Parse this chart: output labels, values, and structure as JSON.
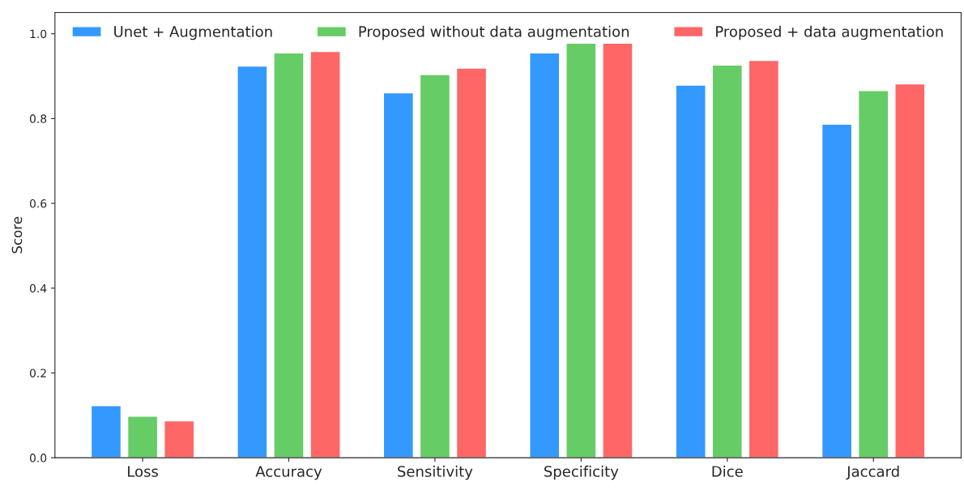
{
  "chart_data": {
    "type": "bar",
    "ylabel": "Score",
    "categories": [
      "Loss",
      "Accuracy",
      "Sensitivity",
      "Specificity",
      "Dice",
      "Jaccard"
    ],
    "series": [
      {
        "name": "Unet + Augmentation",
        "color": "#3399ff",
        "values": [
          0.123,
          0.924,
          0.861,
          0.955,
          0.879,
          0.787
        ]
      },
      {
        "name": "Proposed without data augmentation",
        "color": "#66cc66",
        "values": [
          0.098,
          0.955,
          0.904,
          0.978,
          0.926,
          0.866
        ]
      },
      {
        "name": "Proposed + data augmentation",
        "color": "#ff6666",
        "values": [
          0.087,
          0.958,
          0.919,
          0.978,
          0.937,
          0.882
        ]
      }
    ],
    "ylim": [
      0,
      1.05
    ],
    "yticks": [
      {
        "value": 0,
        "label": "0.0"
      },
      0.2,
      0.4,
      0.6,
      0.8,
      {
        "value": 1,
        "label": "1.0"
      }
    ],
    "grid": false,
    "legend": "top"
  }
}
